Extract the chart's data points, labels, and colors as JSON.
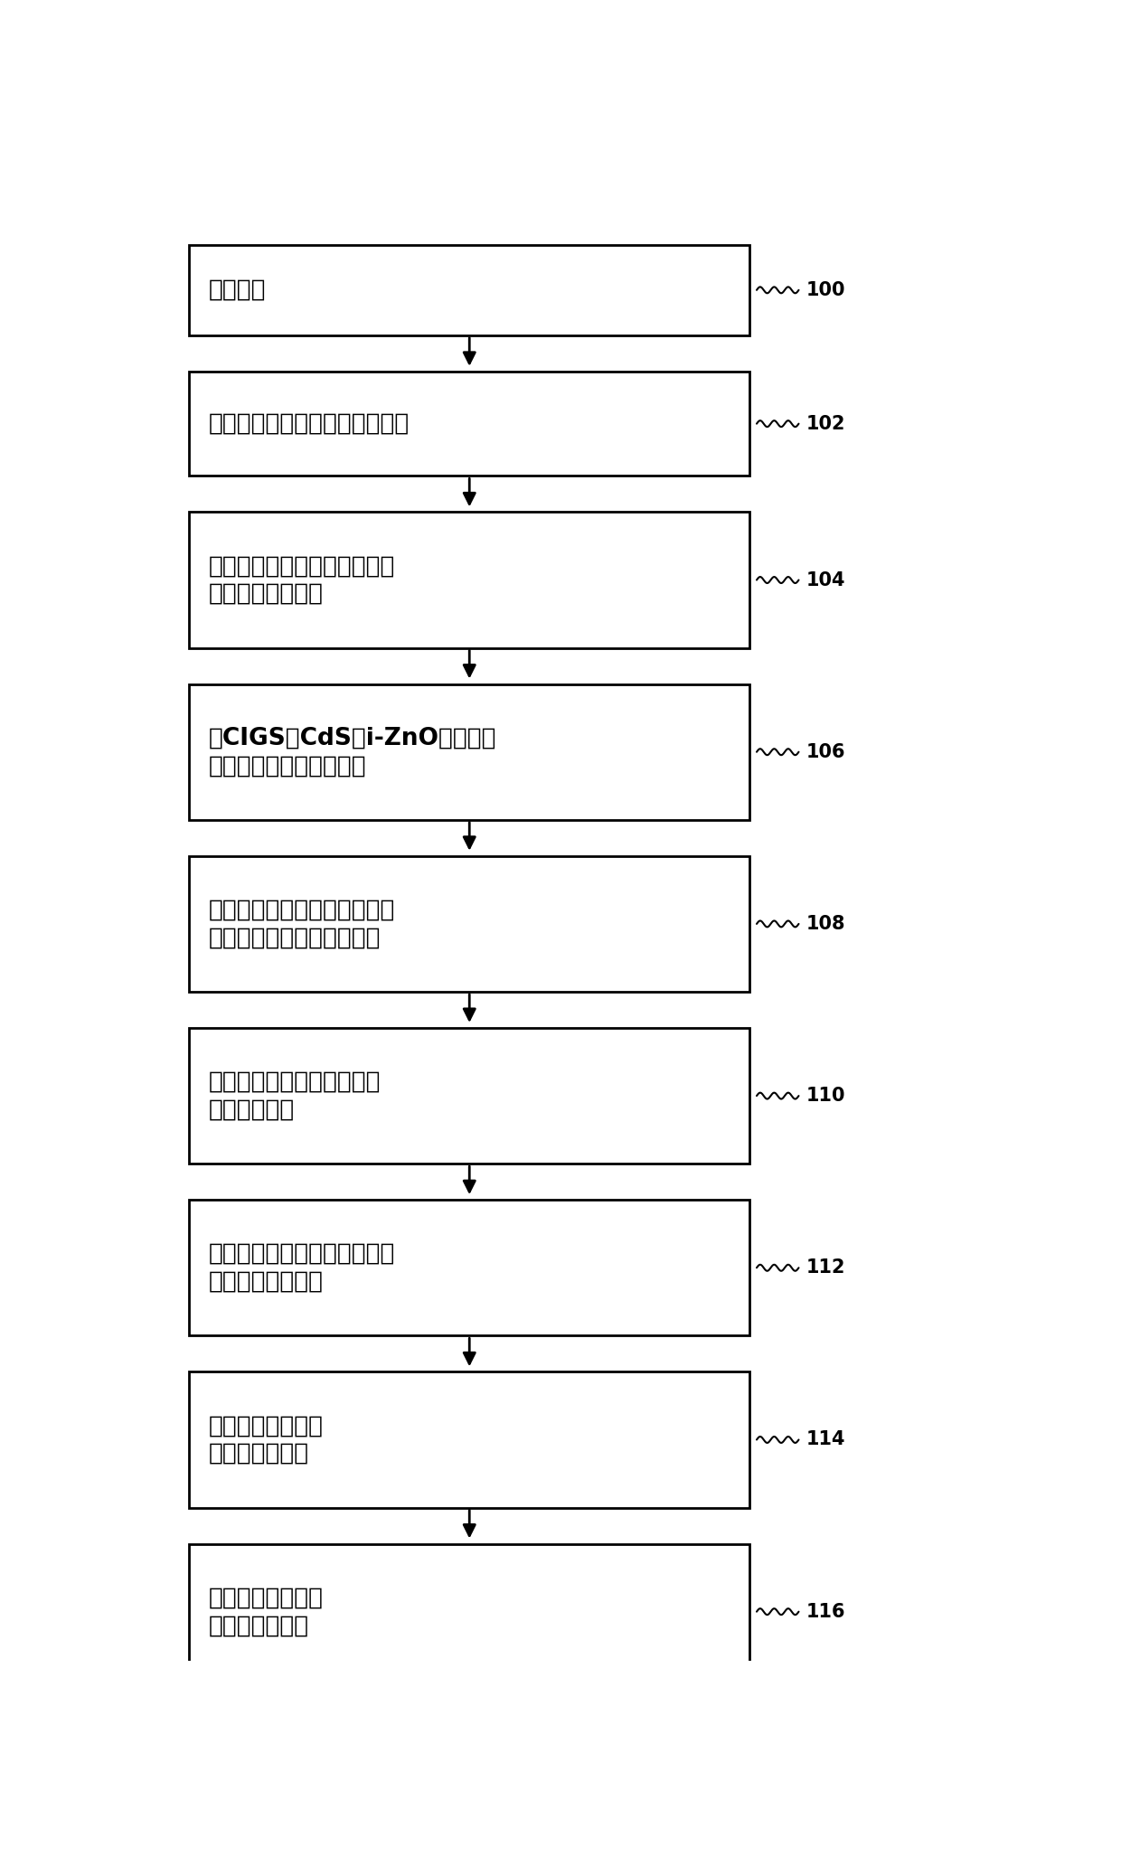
{
  "steps": [
    {
      "id": 100,
      "lines": [
        "提供基板"
      ],
      "single_line": true
    },
    {
      "id": 102,
      "lines": [
        "将底部电极层形成于基板的上方"
      ],
      "single_line": false
    },
    {
      "id": 104,
      "lines": [
        "进行底部电极层的画线过程，",
        "用以定义底部电极"
      ],
      "single_line": false
    },
    {
      "id": 106,
      "lines": [
        "将CIGS，CdS和i-ZnO材料层依",
        "次形成于底部电极的上方"
      ],
      "single_line": false
    },
    {
      "id": 108,
      "lines": [
        "进行光电转换材料层的画线过",
        "程，用以定义光电转换单元"
      ],
      "single_line": false
    },
    {
      "id": 110,
      "lines": [
        "将顶部电极层形成于光电转",
        "换单元的上方"
      ],
      "single_line": false
    },
    {
      "id": 112,
      "lines": [
        "进行顶部电极层的画线过程，",
        "用以定义顶部电极"
      ],
      "single_line": false
    },
    {
      "id": 114,
      "lines": [
        "将抗反射膜形成于",
        "顶部电极的上方"
      ],
      "single_line": false
    },
    {
      "id": 116,
      "lines": [
        "将封装胶膜形成于",
        "抗反射膜的上方"
      ],
      "single_line": false
    }
  ],
  "box_color": "#ffffff",
  "box_edge_color": "#000000",
  "text_color": "#000000",
  "arrow_color": "#000000",
  "label_color": "#000000",
  "background_color": "#ffffff",
  "fig_width": 12.4,
  "fig_height": 20.64,
  "dpi": 100
}
